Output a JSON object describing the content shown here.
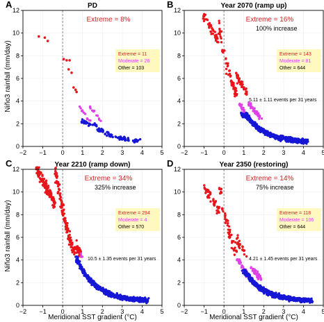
{
  "figure": {
    "xlabel": "Meridional SST gradient (°C)",
    "ylabel": "Niño3 rainfall (mm/day)"
  },
  "colors": {
    "extreme": "#e8161b",
    "moderate": "#e040e8",
    "other": "#1616d6",
    "legend_bg": "#fff8c0",
    "annotation_red": "#d2231f",
    "frame": "#000000",
    "grid": "#eeeeee",
    "dashed_line": "#888888"
  },
  "chart_data": [
    {
      "type": "scatter",
      "panel_letter": "A",
      "title": "PD",
      "extreme_pct": "Extreme = 8%",
      "increase": "",
      "events_rate": "",
      "legend": [
        "Extreme = 11",
        "Moderate = 26",
        "Other = 103"
      ],
      "xlim": [
        -2,
        5
      ],
      "ylim": [
        0,
        12
      ],
      "xticks": [
        "−2",
        "−1",
        "0",
        "1",
        "2",
        "3",
        "4",
        "5"
      ],
      "yticks": [
        "0",
        "2",
        "4",
        "6",
        "8",
        "10",
        "12"
      ],
      "vline_x": 0,
      "counts": {
        "extreme": 11,
        "moderate": 26,
        "other": 103
      },
      "series": [
        {
          "name": "Extreme",
          "x": [
            -1.2,
            -0.9,
            -0.75,
            0.05,
            0.2,
            0.35,
            0.3,
            0.45,
            0.55,
            0.65,
            0.7
          ],
          "y": [
            9.7,
            9.6,
            9.3,
            7.7,
            7.6,
            7.6,
            6.8,
            6.5,
            5.2,
            5.0,
            4.8
          ]
        },
        {
          "name": "Moderate",
          "from": [
            0.85,
            1.9
          ],
          "y_range": [
            4.5,
            2.3
          ]
        },
        {
          "name": "Other",
          "from": [
            1.0,
            3.9
          ],
          "y_range": [
            2.2,
            0.5
          ]
        }
      ]
    },
    {
      "type": "scatter",
      "panel_letter": "B",
      "title": "Year 2070 (ramp up)",
      "extreme_pct": "Extreme = 16%",
      "increase": "100% increase",
      "events_rate": "5.11 ± 1.11 events per 31 years",
      "legend": [
        "Extreme = 143",
        "Moderate = 81",
        "Other = 644"
      ],
      "xlim": [
        -2,
        5
      ],
      "ylim": [
        0,
        12
      ],
      "xticks": [
        "−2",
        "−1",
        "0",
        "1",
        "2",
        "3",
        "4",
        "5"
      ],
      "yticks": [
        "0",
        "2",
        "4",
        "6",
        "8",
        "10",
        "12"
      ],
      "vline_x": 0,
      "counts": {
        "extreme": 143,
        "moderate": 81,
        "other": 644
      },
      "series": [
        {
          "name": "Extreme",
          "from": [
            -1.0,
            1.2
          ],
          "y_range": [
            11.5,
            4.5
          ]
        },
        {
          "name": "Moderate",
          "from": [
            0.8,
            1.8
          ],
          "y_range": [
            4.6,
            2.6
          ]
        },
        {
          "name": "Other",
          "from": [
            0.9,
            4.2
          ],
          "y_range": [
            2.8,
            0.3
          ]
        }
      ]
    },
    {
      "type": "scatter",
      "panel_letter": "C",
      "title": "Year 2210 (ramp down)",
      "extreme_pct": "Extreme = 34%",
      "increase": "325% increase",
      "events_rate": "10.5 ± 1.35 events per 31 years",
      "legend": [
        "Extreme = 294",
        "Moderate = 4",
        "Other = 570"
      ],
      "xlim": [
        -2,
        5
      ],
      "ylim": [
        0,
        12
      ],
      "xticks": [
        "−2",
        "−1",
        "0",
        "1",
        "2",
        "3",
        "4",
        "5"
      ],
      "yticks": [
        "0",
        "2",
        "4",
        "6",
        "8",
        "10",
        "12"
      ],
      "vline_x": 0,
      "counts": {
        "extreme": 294,
        "moderate": 4,
        "other": 570
      },
      "series": [
        {
          "name": "Extreme",
          "from": [
            -1.3,
            0.9
          ],
          "y_range": [
            12.0,
            4.5
          ]
        },
        {
          "name": "Moderate",
          "from": [
            0.8,
            1.0
          ],
          "y_range": [
            4.6,
            4.2
          ]
        },
        {
          "name": "Other",
          "from": [
            0.7,
            4.3
          ],
          "y_range": [
            5.0,
            0.3
          ]
        }
      ]
    },
    {
      "type": "scatter",
      "panel_letter": "D",
      "title": "Year 2350 (restoring)",
      "extreme_pct": "Extreme = 14%",
      "increase": "75% increase",
      "events_rate": "4.21 ± 1.45 events per 31 years",
      "legend": [
        "Extreme = 118",
        "Moderate = 106",
        "Other = 644"
      ],
      "xlim": [
        -2,
        5
      ],
      "ylim": [
        0,
        12
      ],
      "xticks": [
        "−2",
        "−1",
        "0",
        "1",
        "2",
        "3",
        "4",
        "5"
      ],
      "yticks": [
        "0",
        "2",
        "4",
        "6",
        "8",
        "10",
        "12"
      ],
      "vline_x": 0,
      "counts": {
        "extreme": 118,
        "moderate": 106,
        "other": 644
      },
      "series": [
        {
          "name": "Extreme",
          "from": [
            -1.0,
            1.1
          ],
          "y_range": [
            10.5,
            4.5
          ]
        },
        {
          "name": "Moderate",
          "from": [
            0.7,
            1.9
          ],
          "y_range": [
            4.8,
            2.2
          ]
        },
        {
          "name": "Other",
          "from": [
            1.0,
            4.4
          ],
          "y_range": [
            3.2,
            0.2
          ]
        }
      ]
    }
  ]
}
